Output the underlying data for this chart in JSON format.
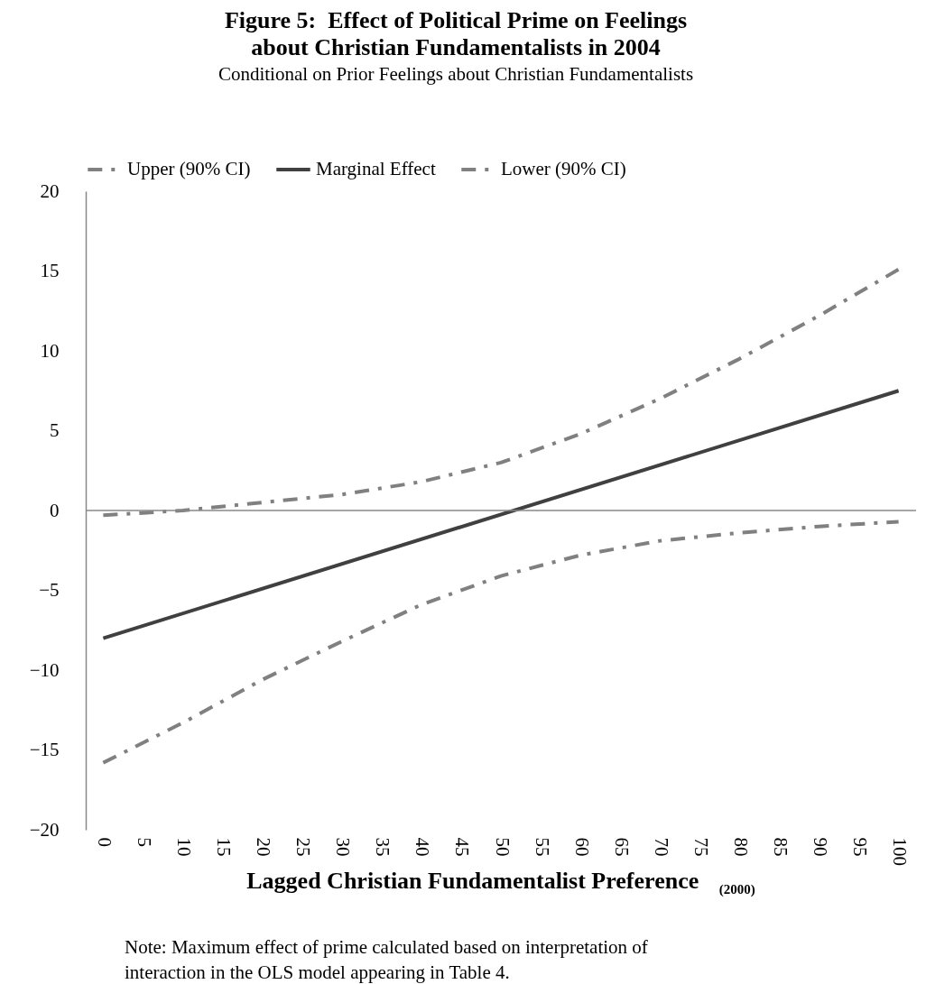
{
  "chart_data": {
    "type": "line",
    "title": "Figure 5:  Effect of Political Prime on Feelings about Christian Fundamentalists in 2004",
    "subtitle": "Conditional on Prior Feelings about Christian Fundamentalists",
    "xlabel": "Lagged Christian Fundamentalist Preference $_{(2000)}$",
    "annotations": [
      "Note: Maximum effect of prime calculated based on interpretation of interaction in the OLS model appearing in Table 4."
    ],
    "xlim": [
      -2.2,
      102.2
    ],
    "xticks": [
      0,
      5,
      10,
      15,
      20,
      25,
      30,
      35,
      40,
      45,
      50,
      55,
      60,
      65,
      70,
      75,
      80,
      85,
      90,
      95,
      100
    ],
    "ylim": [
      -20,
      20
    ],
    "yticks": [
      -20,
      -15,
      -10,
      -5,
      0,
      5,
      10,
      15,
      20
    ],
    "legend": "top",
    "marker": "none",
    "ref_lines": [
      {
        "axis": "y",
        "value": 0,
        "color": "#888888"
      }
    ],
    "series": [
      {
        "name": "Upper (90% CI)",
        "color": "#808080",
        "line_style": "dashed",
        "x": [
          0,
          10,
          20,
          30,
          40,
          50,
          60,
          70,
          80,
          90,
          100
        ],
        "values": [
          -0.3,
          0,
          0.5,
          1.0,
          1.8,
          3.0,
          4.8,
          7.0,
          9.5,
          12.2,
          15.1
        ]
      },
      {
        "name": "Marginal Effect",
        "color": "#404040",
        "line_style": "solid",
        "x": [
          0,
          100
        ],
        "values": [
          -8.0,
          7.5
        ]
      },
      {
        "name": "Lower (90% CI)",
        "color": "#808080",
        "line_style": "dashed",
        "x": [
          0,
          10,
          20,
          30,
          40,
          50,
          60,
          70,
          80,
          90,
          100
        ],
        "values": [
          -15.8,
          -13.3,
          -10.6,
          -8.2,
          -5.9,
          -4.1,
          -2.8,
          -1.9,
          -1.4,
          -1.0,
          -0.7
        ]
      }
    ]
  }
}
